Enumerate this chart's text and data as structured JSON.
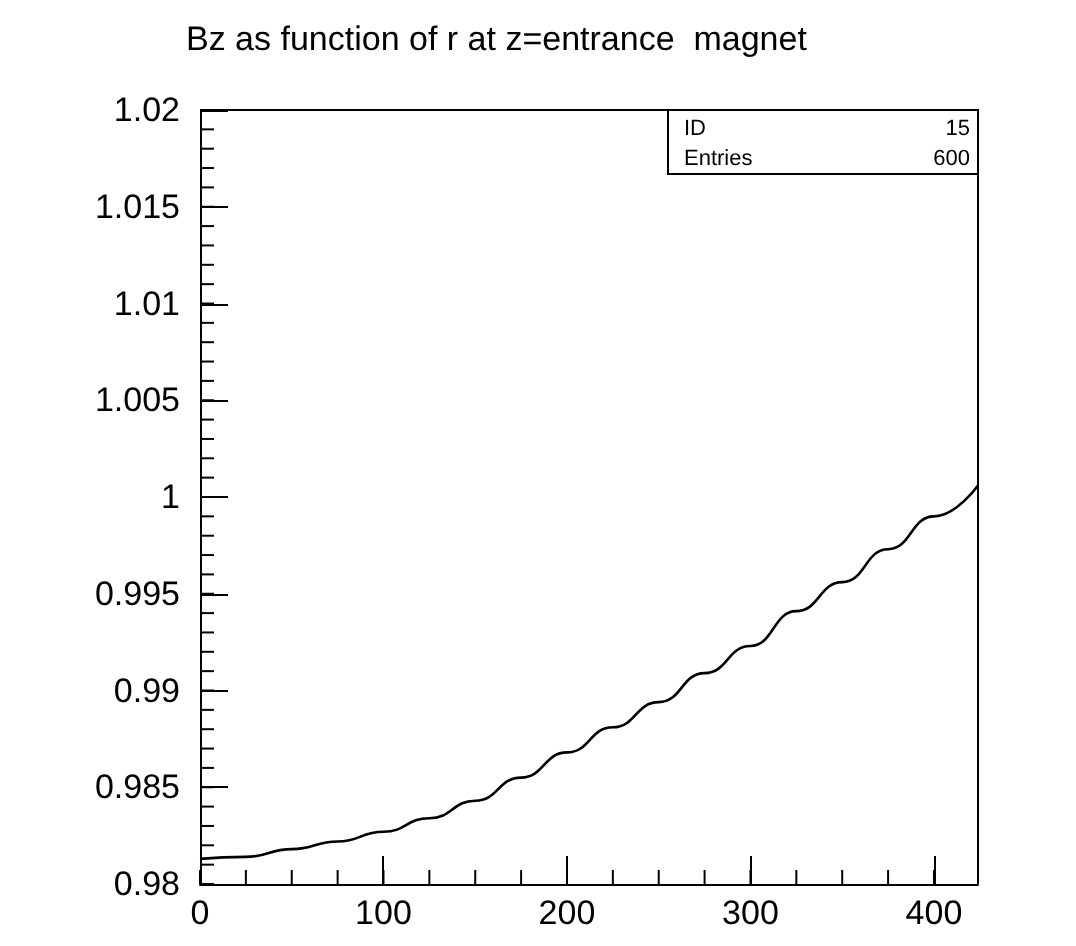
{
  "chart_data": {
    "type": "line",
    "title": "Bz as function of r at z=entrance  magnet",
    "x": [
      0,
      25,
      50,
      75,
      100,
      125,
      150,
      175,
      200,
      225,
      250,
      275,
      300,
      325,
      350,
      375,
      400,
      424
    ],
    "series": [
      {
        "color": "#000000",
        "values": [
          0.9813,
          0.9814,
          0.9818,
          0.9822,
          0.9827,
          0.9834,
          0.9843,
          0.9855,
          0.9868,
          0.9881,
          0.9894,
          0.9909,
          0.9923,
          0.9941,
          0.9956,
          0.9973,
          0.999,
          1.0006
        ]
      }
    ],
    "xlim": [
      0,
      424
    ],
    "xticks": [
      0,
      100,
      200,
      300,
      400
    ],
    "ylim": [
      0.98,
      1.02
    ],
    "yticks": [
      0.98,
      0.985,
      0.99,
      0.995,
      1,
      1.005,
      1.01,
      1.015,
      1.02
    ],
    "annotations": [
      "ID",
      "15",
      "Entries",
      "600"
    ],
    "grid": false,
    "marker": "none",
    "line_style": "solid"
  }
}
